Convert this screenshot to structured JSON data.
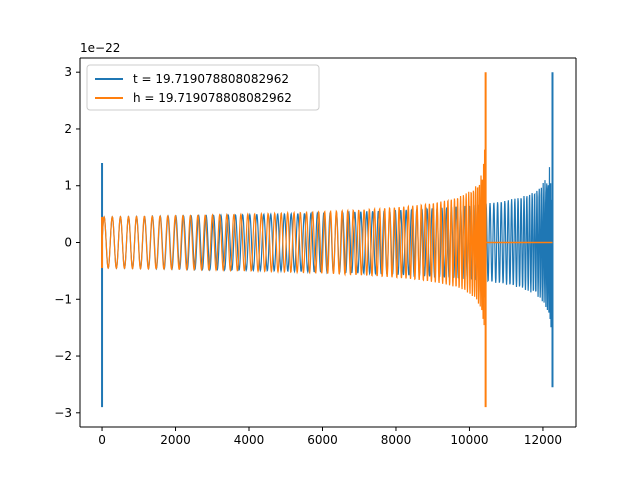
{
  "chart_data": {
    "type": "line",
    "title": "",
    "xlabel": "",
    "ylabel": "",
    "y_offset_text": "1e−22",
    "xlim": [
      -600,
      12900
    ],
    "ylim": [
      -3.25,
      3.25
    ],
    "xticks": [
      0,
      2000,
      4000,
      6000,
      8000,
      10000,
      12000
    ],
    "xtick_labels": [
      "0",
      "2000",
      "4000",
      "6000",
      "8000",
      "10000",
      "12000"
    ],
    "yticks": [
      -3,
      -2,
      -1,
      0,
      1,
      2,
      3
    ],
    "ytick_labels": [
      "−3",
      "−2",
      "−1",
      "0",
      "1",
      "2",
      "3"
    ],
    "grid": false,
    "legend_position": "top-left",
    "series": [
      {
        "name": "t = 19.719078808082962",
        "color": "#1f77b4",
        "x_start": 0,
        "x_end": 12260,
        "end_spike": [
          -2.55,
          3.0
        ],
        "start_spike": [
          -2.9,
          1.4
        ],
        "envelope_start": 0.45,
        "envelope_end_near_merger": 2.35
      },
      {
        "name": "h = 19.719078808082962",
        "color": "#ff7f0e",
        "x_start": 0,
        "x_end": 12260,
        "merger_x": 10440,
        "end_spike": [
          -2.9,
          3.0
        ],
        "start_spike": [
          -0.45,
          0.45
        ],
        "envelope_start": 0.45,
        "envelope_end_near_merger": 1.65,
        "post_merger_value": 0
      }
    ]
  }
}
